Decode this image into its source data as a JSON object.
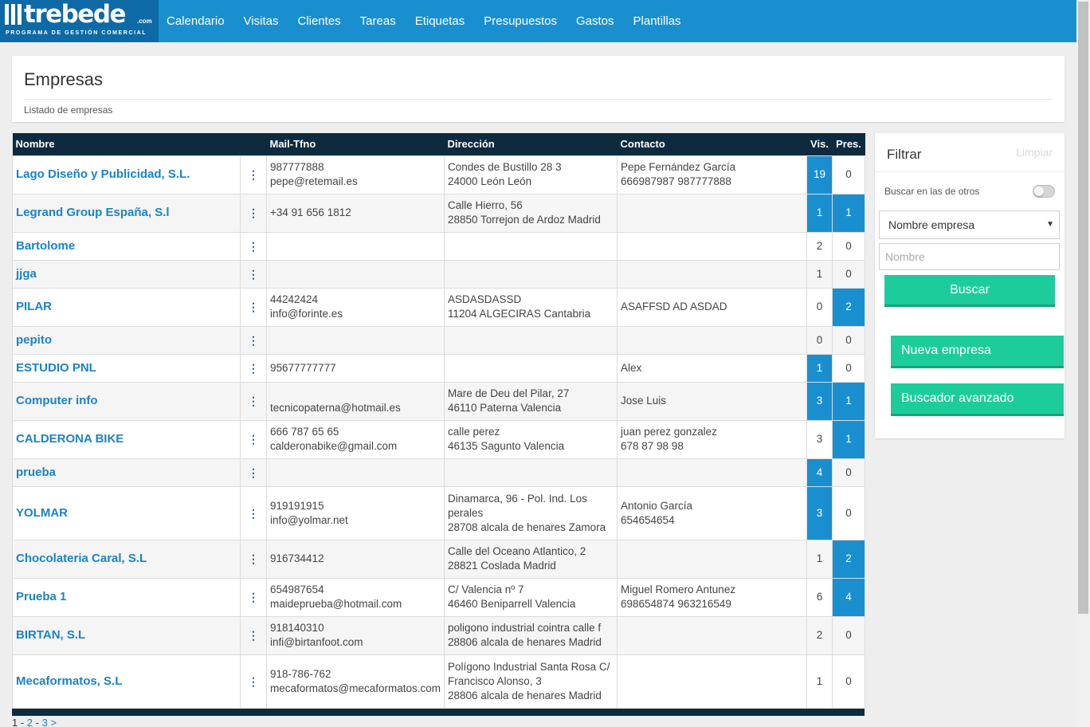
{
  "brand": {
    "word": "trebede",
    "com": ".com",
    "tagline": "PROGRAMA DE GESTIÓN COMERCIAL"
  },
  "nav": [
    "Calendario",
    "Visitas",
    "Clientes",
    "Tareas",
    "Etiquetas",
    "Presupuestos",
    "Gastos",
    "Plantillas"
  ],
  "header": {
    "title": "Empresas",
    "subtitle": "Listado de empresas"
  },
  "table": {
    "columns": {
      "name": "Nombre",
      "mail": "Mail-Tfno",
      "address": "Dirección",
      "contact": "Contacto",
      "visits": "Vis.",
      "quotes": "Pres."
    },
    "menu_glyph": "⋮",
    "rows": [
      {
        "name": "Lago Diseño y Publicidad, S.L.",
        "mail": [
          "987777888",
          "pepe@retemail.es"
        ],
        "address": [
          "Condes de Bustillo 28 3",
          "24000 León León"
        ],
        "contact": [
          "Pepe Fernández García",
          "666987987 987777888"
        ],
        "visits": 19,
        "quotes": 0,
        "visits_hl": true,
        "quotes_hl": false
      },
      {
        "name": "Legrand Group España, S.l",
        "mail": [
          "+34 91 656 1812"
        ],
        "address": [
          "Calle Hierro, 56",
          "28850 Torrejon de Ardoz Madrid"
        ],
        "contact": [],
        "visits": 1,
        "quotes": 1,
        "visits_hl": true,
        "quotes_hl": true
      },
      {
        "name": "Bartolome",
        "mail": [],
        "address": [],
        "contact": [],
        "visits": 2,
        "quotes": 0,
        "visits_hl": false,
        "quotes_hl": false
      },
      {
        "name": "jjga",
        "mail": [],
        "address": [],
        "contact": [],
        "visits": 1,
        "quotes": 0,
        "visits_hl": false,
        "quotes_hl": false
      },
      {
        "name": "PILAR",
        "mail": [
          "44242424",
          "info@forinte.es"
        ],
        "address": [
          "ASDASDASSD",
          "11204 ALGECIRAS Cantabria"
        ],
        "contact": [
          "ASAFFSD AD ASDAD"
        ],
        "visits": 0,
        "quotes": 2,
        "visits_hl": false,
        "quotes_hl": true
      },
      {
        "name": "pepito",
        "mail": [],
        "address": [],
        "contact": [],
        "visits": 0,
        "quotes": 0,
        "visits_hl": false,
        "quotes_hl": false
      },
      {
        "name": "ESTUDIO PNL",
        "mail": [
          "95677777777"
        ],
        "address": [],
        "contact": [
          "Alex"
        ],
        "visits": 1,
        "quotes": 0,
        "visits_hl": true,
        "quotes_hl": false
      },
      {
        "name": "Computer info",
        "mail": [
          "",
          "tecnicopaterna@hotmail.es"
        ],
        "address": [
          "Mare de Deu del Pilar, 27",
          "46110 Paterna Valencia"
        ],
        "contact": [
          "Jose Luis"
        ],
        "visits": 3,
        "quotes": 1,
        "visits_hl": true,
        "quotes_hl": true
      },
      {
        "name": "CALDERONA BIKE",
        "mail": [
          "666 787 65 65",
          "calderonabike@gmail.com"
        ],
        "address": [
          "calle perez",
          "46135 Sagunto Valencia"
        ],
        "contact": [
          "juan perez gonzalez",
          "678 87 98 98"
        ],
        "visits": 3,
        "quotes": 1,
        "visits_hl": false,
        "quotes_hl": true
      },
      {
        "name": "prueba",
        "mail": [],
        "address": [],
        "contact": [],
        "visits": 4,
        "quotes": 0,
        "visits_hl": true,
        "quotes_hl": false
      },
      {
        "name": "YOLMAR",
        "mail": [
          "919191915",
          "info@yolmar.net"
        ],
        "address": [
          "Dinamarca, 96 - Pol. Ind. Los",
          "perales",
          "28708 alcala de henares Zamora"
        ],
        "contact": [
          "Antonio García",
          "654654654"
        ],
        "visits": 3,
        "quotes": 0,
        "visits_hl": true,
        "quotes_hl": false
      },
      {
        "name": "Chocolateria Caral, S.L",
        "mail": [
          "916734412"
        ],
        "address": [
          "Calle del Oceano Atlantico, 2",
          "28821 Coslada Madrid"
        ],
        "contact": [],
        "visits": 1,
        "quotes": 2,
        "visits_hl": false,
        "quotes_hl": true
      },
      {
        "name": "Prueba 1",
        "mail": [
          "654987654",
          "maideprueba@hotmail.com"
        ],
        "address": [
          "C/ Valencia nº 7",
          "46460 Beniparrell Valencia"
        ],
        "contact": [
          "Miguel Romero Antunez",
          "698654874 963216549"
        ],
        "visits": 6,
        "quotes": 4,
        "visits_hl": false,
        "quotes_hl": true
      },
      {
        "name": "BIRTAN, S.L",
        "mail": [
          "918140310",
          "infi@birtanfoot.com"
        ],
        "address": [
          "poligono industrial cointra calle f",
          "28806 alcala de henares Madrid"
        ],
        "contact": [],
        "visits": 2,
        "quotes": 0,
        "visits_hl": false,
        "quotes_hl": false
      },
      {
        "name": "Mecaformatos, S.L",
        "mail": [
          "918-786-762",
          "mecaformatos@mecaformatos.com"
        ],
        "address": [
          "Polígono Industrial Santa Rosa C/",
          "Francisco Alonso, 3",
          "28806 alcala de henares Madrid"
        ],
        "contact": [],
        "visits": 1,
        "quotes": 0,
        "visits_hl": false,
        "quotes_hl": false
      }
    ]
  },
  "pagination": {
    "current": "1",
    "sep": " - ",
    "pages": [
      "2",
      "3"
    ],
    "next": ">"
  },
  "filter": {
    "title": "Filtrar",
    "clear": "Limpiar",
    "others_label": "Buscar en las de otros",
    "select_value": "Nombre empresa",
    "select_caret": "▼",
    "name_placeholder": "Nombre",
    "search_button": "Buscar",
    "new_button": "Nueva empresa",
    "advanced_button": "Buscador avanzado"
  },
  "colors": {
    "nav": "#1a8fd0",
    "logo": "#0d6aa6",
    "table_head": "#0e2a3f",
    "highlight": "#1a8fd0",
    "button": "#1ccd9b",
    "link": "#1a83c6"
  }
}
